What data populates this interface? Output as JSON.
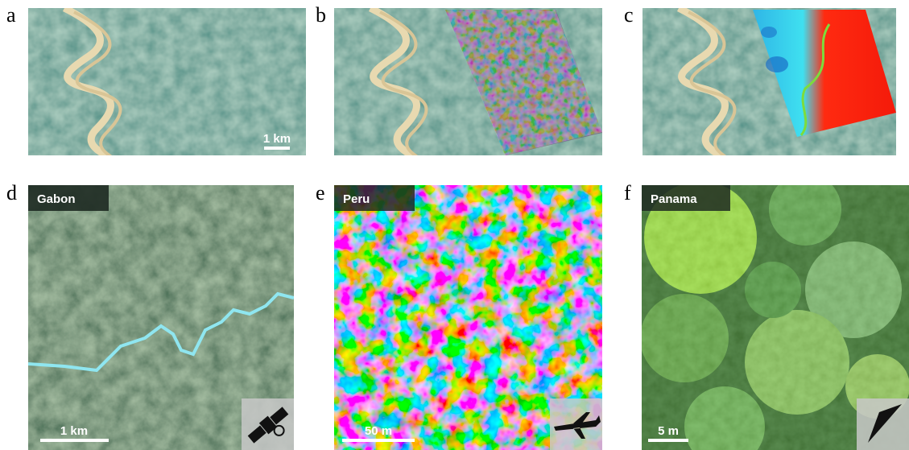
{
  "panels": [
    {
      "letter": "a",
      "scale_bar": "1 km"
    },
    {
      "letter": "b"
    },
    {
      "letter": "c"
    },
    {
      "letter": "d",
      "site": "Gabon",
      "scale_bar": "1 km"
    },
    {
      "letter": "e",
      "site": "Peru",
      "scale_bar": "50 m"
    },
    {
      "letter": "f",
      "site": "Panama",
      "scale_bar": "5 m"
    }
  ]
}
